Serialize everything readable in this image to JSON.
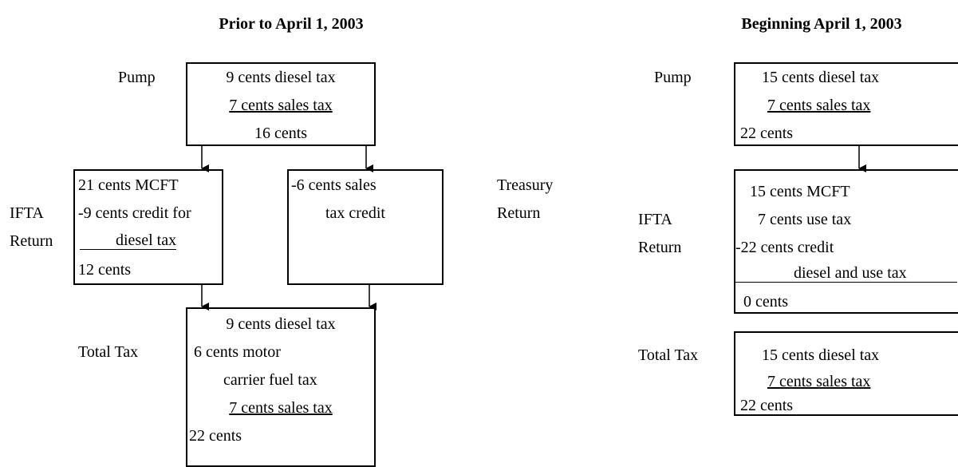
{
  "left": {
    "title": "Prior to April 1, 2003",
    "pump": {
      "label": "Pump",
      "lines": [
        "9 cents diesel tax",
        "7 cents sales tax",
        "16 cents"
      ]
    },
    "ifta": {
      "label": [
        "IFTA",
        "Return"
      ],
      "lines": [
        "21 cents MCFT",
        "-9 cents credit for",
        "diesel tax",
        "12 cents"
      ]
    },
    "treasury": {
      "label": [
        "Treasury",
        "Return"
      ],
      "lines": [
        "-6 cents sales",
        "tax credit"
      ]
    },
    "total": {
      "label": "Total Tax",
      "lines": [
        "9 cents diesel tax",
        "6 cents motor",
        "carrier fuel tax",
        "7 cents sales tax",
        "22 cents"
      ]
    }
  },
  "right": {
    "title": "Beginning April 1, 2003",
    "pump": {
      "label": "Pump",
      "lines": [
        "15 cents diesel tax",
        "7 cents sales tax",
        "22 cents"
      ]
    },
    "ifta": {
      "label": [
        "IFTA",
        "Return"
      ],
      "lines": [
        "15 cents MCFT",
        "7 cents use tax",
        "-22 cents credit",
        "diesel and use tax",
        "0 cents"
      ]
    },
    "total": {
      "label": "Total Tax",
      "lines": [
        "15 cents diesel tax",
        "7 cents sales tax",
        "22 cents"
      ]
    }
  }
}
